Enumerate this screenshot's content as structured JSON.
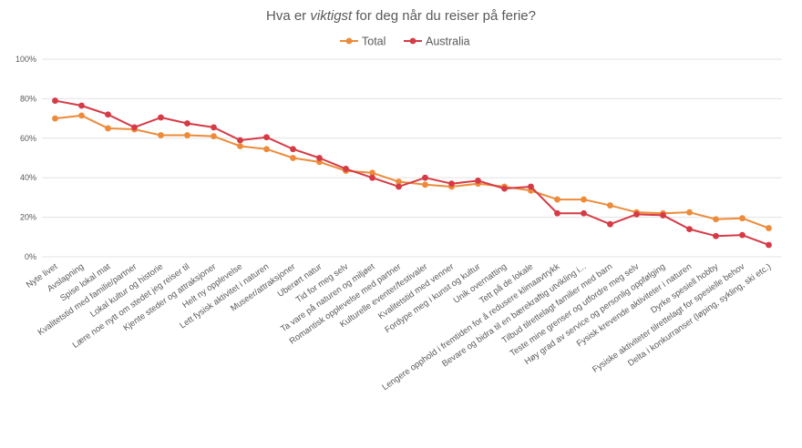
{
  "chart_data": {
    "type": "line",
    "title": {
      "pre": "Hva er ",
      "emphasis": "viktigst",
      "post": " for deg når du reiser på ferie?"
    },
    "xlabel": "",
    "ylabel": "",
    "ylim": [
      0,
      100
    ],
    "y_ticks": [
      "0%",
      "20%",
      "40%",
      "60%",
      "80%",
      "100%"
    ],
    "grid": true,
    "legend_position": "top-center",
    "categories": [
      "Nyte livet",
      "Avslapning",
      "Spise lokal mat",
      "Kvalitetstid med familie/partner",
      "Lokal kultur og historie",
      "Lære noe nytt om stedet jeg reiser til",
      "Kjente steder og attraksjoner",
      "Helt ny opplevelse",
      "Lett fysisk aktivitet i naturen",
      "Museer/attraksjoner",
      "Uberørt natur",
      "Tid for meg selv",
      "Ta vare på naturen og miljøet",
      "Romantisk opplevelse med partner",
      "Kulturelle eventer/festivaler",
      "Kvalitetstid med venner",
      "Fordype meg i kunst og kultur",
      "Unik overnatting",
      "Tett på de lokale",
      "Lengere opphold i fremtiden for å redusere klimaavtrykk",
      "Bevare og bidra til en bærekraftig utvikling i...",
      "Tilbud tilrettelagt familier med barn",
      "Teste mine grenser og utfordre meg selv",
      "Høy grad av service og personlig oppfølging",
      "Fysisk krevende aktiviteter i naturen",
      "Dyrke spesiell hobby",
      "Fysiske aktiviteter tilrettelagt for spesielle behov",
      "Delta i konkurranser (løping, sykling, ski etc.)"
    ],
    "series": [
      {
        "name": "Total",
        "color": "#ED8B3A",
        "values": [
          70,
          71.5,
          65,
          64.5,
          61.5,
          61.5,
          61,
          56,
          54.5,
          50,
          48,
          43.5,
          42.5,
          38,
          36.5,
          35.5,
          37,
          35.5,
          33.5,
          29,
          29,
          26,
          22.5,
          22,
          22.5,
          19,
          19.5,
          14.5
        ]
      },
      {
        "name": "Australia",
        "color": "#D63A45",
        "values": [
          79,
          76.5,
          72,
          65.5,
          70.5,
          67.5,
          65.5,
          59,
          60.5,
          54.5,
          50,
          44.5,
          40,
          35.5,
          40,
          37,
          38.5,
          34.5,
          35.5,
          22,
          22,
          16.5,
          21.5,
          21,
          14,
          10.5,
          11,
          6
        ]
      }
    ]
  }
}
